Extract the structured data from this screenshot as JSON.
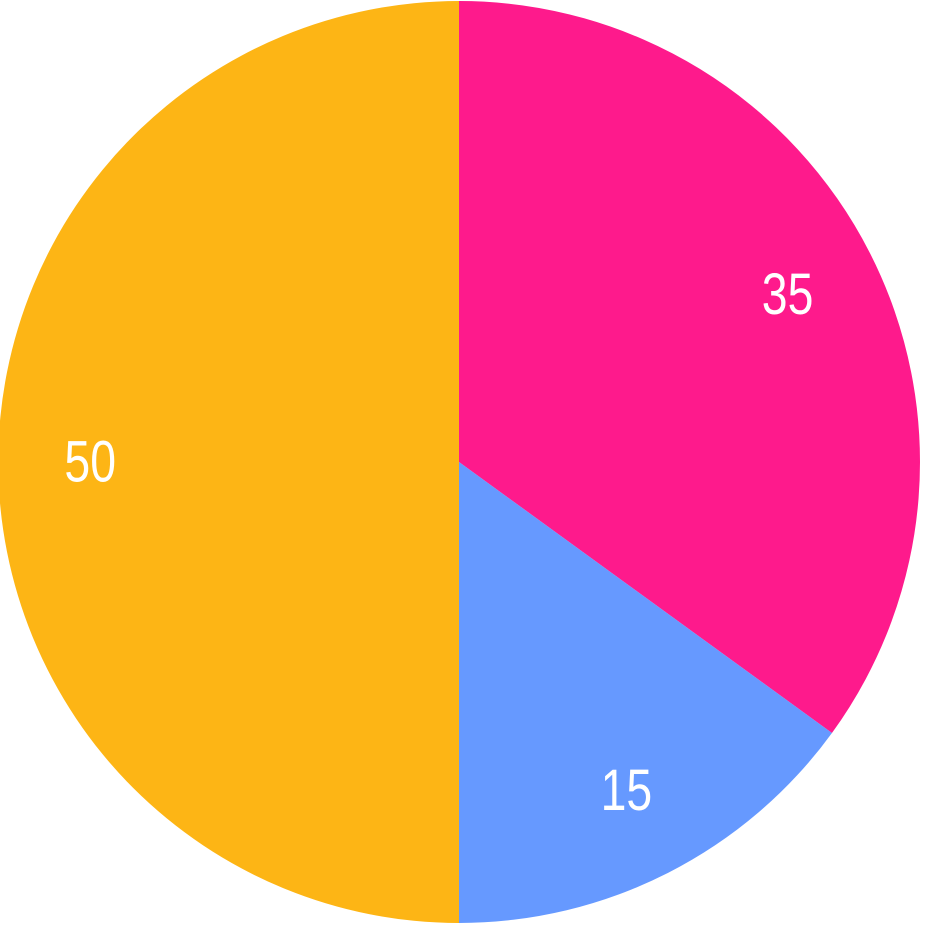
{
  "chart_data": {
    "type": "pie",
    "categories": [
      "",
      "",
      ""
    ],
    "values": [
      35,
      15,
      50
    ],
    "labels": [
      "35",
      "15",
      "50"
    ],
    "colors": [
      "#fe1a8c",
      "#6699ff",
      "#fdb515"
    ],
    "start_angle": "top",
    "direction": "clockwise",
    "legend": "none"
  }
}
